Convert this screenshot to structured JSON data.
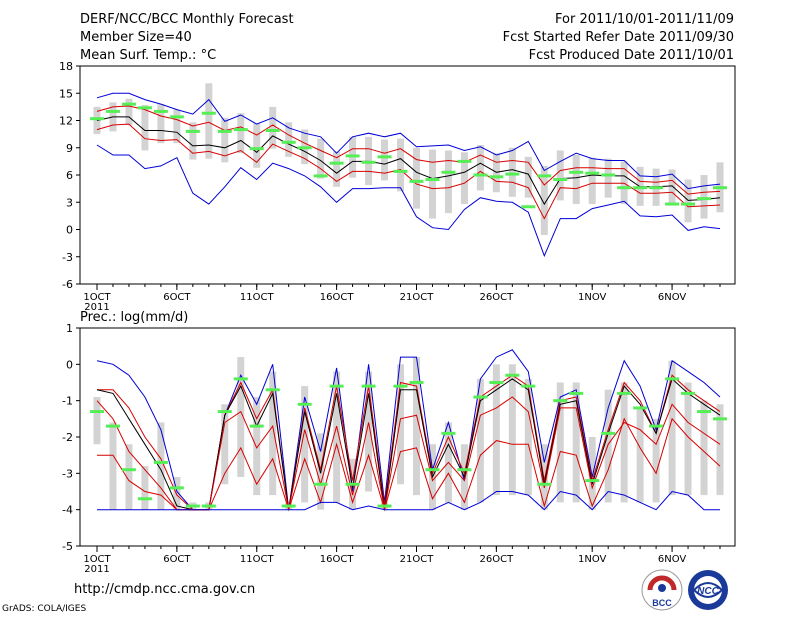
{
  "header": {
    "title": "DERF/NCC/BCC Monthly Forecast",
    "member_size": "Member Size=40",
    "period": "For 2011/10/01-2011/11/09",
    "fcst_started": "Fcst Started Refer Date 2011/09/30",
    "fcst_produced": "Fcst Produced Date 2011/10/01"
  },
  "footer": {
    "url": "http://cmdp.ncc.cma.gov.cn",
    "credit": "GrADS: COLA/IGES",
    "logos": [
      {
        "name": "bcc-logo",
        "text": "BCC",
        "color": "#c0282a"
      },
      {
        "name": "ncc-logo",
        "text": "NCC",
        "color": "#1a3a9a"
      }
    ]
  },
  "colors": {
    "envelope": "#0000d8",
    "spread": "#d80000",
    "mean": "#000000",
    "bar": "#d3d3d3",
    "observed": "#55ee55"
  },
  "chart_data": [
    {
      "type": "line",
      "title": "Mean Surf. Temp.: °C",
      "xlabel": "",
      "ylabel": "°C",
      "ylim": [
        -6,
        18
      ],
      "yticks": [
        -6,
        -3,
        0,
        3,
        6,
        9,
        12,
        15,
        18
      ],
      "day_range": [
        1,
        40
      ],
      "xticks": [
        {
          "day": 1,
          "label": "1OCT",
          "sublabel": "2011"
        },
        {
          "day": 6,
          "label": "6OCT"
        },
        {
          "day": 11,
          "label": "11OCT"
        },
        {
          "day": 16,
          "label": "16OCT"
        },
        {
          "day": 21,
          "label": "21OCT"
        },
        {
          "day": 26,
          "label": "26OCT"
        },
        {
          "day": 32,
          "label": "1NOV"
        },
        {
          "day": 37,
          "label": "6NOV"
        }
      ],
      "series": [
        {
          "name": "max",
          "role": "envelope",
          "values": [
            14.5,
            15.0,
            15.0,
            14.3,
            13.8,
            13.2,
            12.7,
            14.3,
            11.9,
            12.6,
            11.6,
            12.3,
            11.2,
            10.6,
            10.2,
            8.4,
            10.2,
            10.6,
            10.2,
            10.6,
            9.1,
            9.2,
            9.3,
            8.7,
            9.1,
            8.2,
            8.7,
            9.7,
            6.5,
            7.5,
            8.4,
            7.8,
            7.6,
            7.6,
            5.9,
            5.8,
            6.1,
            4.5,
            4.8,
            5.0
          ]
        },
        {
          "name": "upper",
          "role": "spread",
          "values": [
            13.0,
            13.5,
            13.6,
            13.2,
            12.5,
            12.1,
            11.4,
            11.8,
            10.9,
            11.3,
            10.4,
            11.5,
            10.4,
            9.5,
            8.7,
            7.9,
            8.9,
            8.9,
            8.4,
            8.9,
            7.7,
            7.4,
            7.6,
            7.4,
            8.2,
            7.4,
            7.6,
            7.4,
            4.9,
            6.5,
            6.8,
            6.8,
            6.7,
            6.7,
            5.3,
            5.2,
            5.4,
            3.9,
            4.1,
            4.2
          ]
        },
        {
          "name": "mean",
          "role": "mean",
          "values": [
            12.0,
            12.4,
            12.4,
            10.9,
            10.9,
            10.7,
            9.2,
            9.3,
            9.0,
            9.8,
            8.5,
            10.3,
            9.4,
            8.6,
            7.6,
            6.2,
            7.5,
            7.5,
            7.2,
            7.8,
            6.3,
            5.6,
            5.9,
            6.3,
            7.3,
            6.3,
            6.6,
            6.1,
            2.8,
            5.6,
            5.7,
            6.0,
            5.9,
            5.9,
            4.7,
            4.7,
            4.8,
            3.2,
            3.3,
            3.5
          ]
        },
        {
          "name": "lower",
          "role": "spread",
          "values": [
            11.0,
            11.5,
            11.6,
            10.0,
            9.8,
            9.9,
            8.4,
            8.6,
            8.1,
            8.7,
            7.4,
            9.4,
            8.6,
            7.8,
            6.7,
            5.3,
            6.4,
            6.4,
            6.2,
            6.6,
            5.0,
            4.5,
            4.6,
            5.1,
            6.4,
            5.3,
            5.2,
            4.6,
            1.2,
            4.6,
            4.5,
            5.1,
            5.1,
            5.1,
            4.0,
            4.0,
            4.1,
            2.5,
            2.6,
            2.7
          ]
        },
        {
          "name": "min",
          "role": "envelope",
          "values": [
            9.3,
            8.2,
            8.2,
            6.7,
            7.0,
            7.9,
            4.0,
            2.8,
            4.7,
            6.8,
            5.5,
            7.3,
            6.7,
            5.9,
            4.7,
            3.0,
            4.5,
            4.5,
            4.6,
            4.6,
            1.4,
            0.2,
            0.0,
            2.2,
            3.5,
            3.1,
            3.0,
            1.9,
            -2.9,
            1.2,
            1.2,
            2.3,
            2.7,
            3.1,
            1.5,
            1.4,
            1.6,
            -0.1,
            0.3,
            0.1
          ]
        }
      ],
      "bars": [
        [
          10.5,
          13.5
        ],
        [
          10.8,
          14.0
        ],
        [
          11.5,
          14.4
        ],
        [
          8.7,
          13.7
        ],
        [
          9.5,
          13.8
        ],
        [
          9.5,
          13.2
        ],
        [
          7.7,
          11.8
        ],
        [
          7.8,
          16.1
        ],
        [
          7.4,
          12.3
        ],
        [
          8.4,
          12.8
        ],
        [
          6.8,
          11.7
        ],
        [
          8.9,
          13.5
        ],
        [
          8.0,
          11.8
        ],
        [
          7.2,
          11.0
        ],
        [
          5.6,
          10.0
        ],
        [
          4.7,
          8.6
        ],
        [
          5.7,
          10.2
        ],
        [
          4.9,
          10.2
        ],
        [
          5.4,
          9.9
        ],
        [
          4.2,
          10.0
        ],
        [
          2.3,
          9.0
        ],
        [
          1.2,
          8.8
        ],
        [
          1.8,
          8.7
        ],
        [
          2.8,
          8.5
        ],
        [
          4.3,
          9.3
        ],
        [
          4.1,
          8.4
        ],
        [
          3.6,
          9.0
        ],
        [
          3.5,
          8.0
        ],
        [
          -0.6,
          7.0
        ],
        [
          3.2,
          8.7
        ],
        [
          2.8,
          8.2
        ],
        [
          2.8,
          7.9
        ],
        [
          3.5,
          7.8
        ],
        [
          2.8,
          7.5
        ],
        [
          2.6,
          6.9
        ],
        [
          2.6,
          6.7
        ],
        [
          2.7,
          6.6
        ],
        [
          0.8,
          5.5
        ],
        [
          1.2,
          6.0
        ],
        [
          1.9,
          7.4
        ]
      ],
      "observed": [
        12.2,
        13.0,
        13.8,
        13.4,
        13.0,
        12.4,
        10.8,
        12.8,
        10.8,
        11.0,
        8.9,
        10.9,
        9.6,
        9.0,
        5.9,
        7.3,
        8.1,
        7.4,
        8.0,
        6.4,
        5.3,
        5.5,
        6.3,
        7.5,
        6.0,
        5.8,
        6.1,
        2.5,
        5.9,
        5.5,
        6.3,
        6.2,
        6.0,
        4.6,
        4.6,
        4.6,
        2.8,
        2.8,
        3.4,
        4.6
      ]
    },
    {
      "type": "line",
      "title": "Prec.: log(mm/d)",
      "xlabel": "",
      "ylabel": "log(mm/d)",
      "ylim": [
        -5,
        1
      ],
      "yticks": [
        -5,
        -4,
        -3,
        -2,
        -1,
        0,
        1
      ],
      "day_range": [
        1,
        40
      ],
      "xticks": [
        {
          "day": 1,
          "label": "1OCT",
          "sublabel": "2011"
        },
        {
          "day": 6,
          "label": "6OCT"
        },
        {
          "day": 11,
          "label": "11OCT"
        },
        {
          "day": 16,
          "label": "16OCT"
        },
        {
          "day": 21,
          "label": "21OCT"
        },
        {
          "day": 26,
          "label": "26OCT"
        },
        {
          "day": 32,
          "label": "1NOV"
        },
        {
          "day": 37,
          "label": "6NOV"
        }
      ],
      "series": [
        {
          "name": "max",
          "role": "envelope",
          "values": [
            0.1,
            0.0,
            -0.3,
            -0.9,
            -1.8,
            -3.5,
            -4.0,
            -4.0,
            -1.4,
            -0.3,
            -1.1,
            0.0,
            -4.0,
            -0.9,
            -2.4,
            -0.1,
            -3.5,
            0.0,
            -3.8,
            0.2,
            0.2,
            -2.9,
            -1.6,
            -3.2,
            -0.4,
            0.2,
            0.4,
            -0.2,
            -2.7,
            -0.9,
            -0.7,
            -3.1,
            -1.2,
            0.1,
            -0.6,
            -1.8,
            0.1,
            -0.2,
            -0.5,
            -0.9
          ]
        },
        {
          "name": "upper",
          "role": "spread",
          "values": [
            -0.7,
            -0.7,
            -1.2,
            -2.0,
            -2.6,
            -3.6,
            -4.0,
            -4.0,
            -1.4,
            -0.5,
            -1.5,
            -0.7,
            -4.0,
            -1.2,
            -2.9,
            -0.6,
            -3.2,
            -0.6,
            -3.9,
            -0.5,
            -0.6,
            -3.0,
            -2.0,
            -3.0,
            -0.9,
            -0.6,
            -0.3,
            -0.6,
            -3.2,
            -1.0,
            -0.9,
            -3.2,
            -1.8,
            -0.5,
            -1.0,
            -1.9,
            -0.3,
            -0.7,
            -1.0,
            -1.3
          ]
        },
        {
          "name": "mean",
          "role": "mean",
          "values": [
            -0.7,
            -0.8,
            -1.5,
            -2.2,
            -2.9,
            -3.9,
            -4.0,
            -4.0,
            -1.4,
            -0.6,
            -1.7,
            -0.8,
            -4.0,
            -1.3,
            -3.0,
            -0.8,
            -3.4,
            -0.8,
            -4.0,
            -0.7,
            -0.7,
            -3.1,
            -2.2,
            -3.1,
            -1.0,
            -0.7,
            -0.4,
            -0.7,
            -3.3,
            -1.1,
            -1.0,
            -3.3,
            -1.9,
            -0.6,
            -1.1,
            -1.9,
            -0.4,
            -0.8,
            -1.1,
            -1.4
          ]
        },
        {
          "name": "lower",
          "role": "spread",
          "values": [
            -1.0,
            -1.5,
            -2.4,
            -2.9,
            -3.4,
            -4.0,
            -4.0,
            -4.0,
            -1.6,
            -1.3,
            -2.3,
            -1.7,
            -4.0,
            -1.8,
            -3.3,
            -1.7,
            -3.6,
            -1.6,
            -4.0,
            -1.5,
            -1.4,
            -3.2,
            -2.7,
            -3.2,
            -1.4,
            -1.2,
            -0.9,
            -1.3,
            -3.4,
            -1.2,
            -1.2,
            -3.4,
            -2.2,
            -1.6,
            -1.8,
            -2.2,
            -1.1,
            -1.6,
            -1.9,
            -2.2
          ]
        },
        {
          "name": "min",
          "role": "spread",
          "values": [
            -2.5,
            -2.5,
            -3.2,
            -3.5,
            -3.6,
            -4.0,
            -4.0,
            -4.0,
            -3.0,
            -2.3,
            -3.3,
            -2.6,
            -4.0,
            -2.6,
            -3.8,
            -2.2,
            -3.8,
            -2.5,
            -4.0,
            -2.4,
            -2.3,
            -3.7,
            -3.0,
            -3.8,
            -2.5,
            -2.1,
            -2.2,
            -2.2,
            -3.9,
            -2.4,
            -2.5,
            -3.9,
            -2.9,
            -1.5,
            -2.3,
            -3.0,
            -1.5,
            -2.0,
            -2.4,
            -2.8
          ]
        },
        {
          "name": "floor",
          "role": "envelope",
          "values": [
            -4.0,
            -4.0,
            -4.0,
            -4.0,
            -4.0,
            -4.0,
            -4.0,
            -4.0,
            -4.0,
            -4.0,
            -4.0,
            -4.0,
            -4.0,
            -4.0,
            -3.8,
            -3.8,
            -4.0,
            -3.9,
            -4.0,
            -4.0,
            -4.0,
            -4.0,
            -3.8,
            -4.0,
            -3.8,
            -3.5,
            -3.5,
            -3.6,
            -4.0,
            -3.5,
            -3.6,
            -4.0,
            -3.5,
            -3.6,
            -3.8,
            -4.0,
            -3.5,
            -3.6,
            -4.0,
            -4.0
          ]
        }
      ],
      "bars": [
        [
          -2.2,
          -0.9
        ],
        [
          -4.0,
          -1.6
        ],
        [
          -4.0,
          -2.2
        ],
        [
          -4.0,
          -2.8
        ],
        [
          -4.0,
          -1.6
        ],
        [
          -4.0,
          -3.1
        ],
        [
          -4.0,
          -3.8
        ],
        [
          -4.0,
          -3.8
        ],
        [
          -3.3,
          -1.1
        ],
        [
          -3.1,
          0.2
        ],
        [
          -3.6,
          -0.9
        ],
        [
          -3.6,
          -0.2
        ],
        [
          -4.0,
          -3.8
        ],
        [
          -3.8,
          -0.6
        ],
        [
          -4.0,
          -1.9
        ],
        [
          -3.8,
          -0.2
        ],
        [
          -4.0,
          -2.6
        ],
        [
          -3.5,
          -0.2
        ],
        [
          -4.0,
          -3.8
        ],
        [
          -3.3,
          0.0
        ],
        [
          -3.6,
          0.2
        ],
        [
          -4.0,
          -2.2
        ],
        [
          -3.8,
          -1.6
        ],
        [
          -4.0,
          -2.2
        ],
        [
          -3.8,
          -0.4
        ],
        [
          -3.6,
          0.0
        ],
        [
          -3.6,
          0.0
        ],
        [
          -3.6,
          -0.4
        ],
        [
          -4.0,
          -2.2
        ],
        [
          -3.8,
          -0.5
        ],
        [
          -3.8,
          -0.5
        ],
        [
          -4.0,
          -2.0
        ],
        [
          -3.8,
          -0.7
        ],
        [
          -3.8,
          -0.5
        ],
        [
          -3.8,
          -1.2
        ],
        [
          -3.8,
          -1.5
        ],
        [
          -3.6,
          0.1
        ],
        [
          -3.6,
          -0.5
        ],
        [
          -3.6,
          -1.0
        ],
        [
          -3.6,
          -1.1
        ]
      ],
      "observed": [
        -1.3,
        -1.7,
        -2.9,
        -3.7,
        -2.7,
        -3.4,
        -3.9,
        -3.9,
        -1.3,
        -0.4,
        -1.7,
        -0.7,
        -3.9,
        -1.1,
        -3.3,
        -0.6,
        -3.3,
        -0.6,
        -3.9,
        -0.6,
        -0.5,
        -2.9,
        -1.9,
        -2.9,
        -0.9,
        -0.5,
        -0.3,
        -0.6,
        -3.3,
        -1.0,
        -0.8,
        -3.2,
        -1.9,
        -0.8,
        -1.2,
        -1.7,
        -0.4,
        -0.8,
        -1.3,
        -1.5
      ]
    }
  ]
}
